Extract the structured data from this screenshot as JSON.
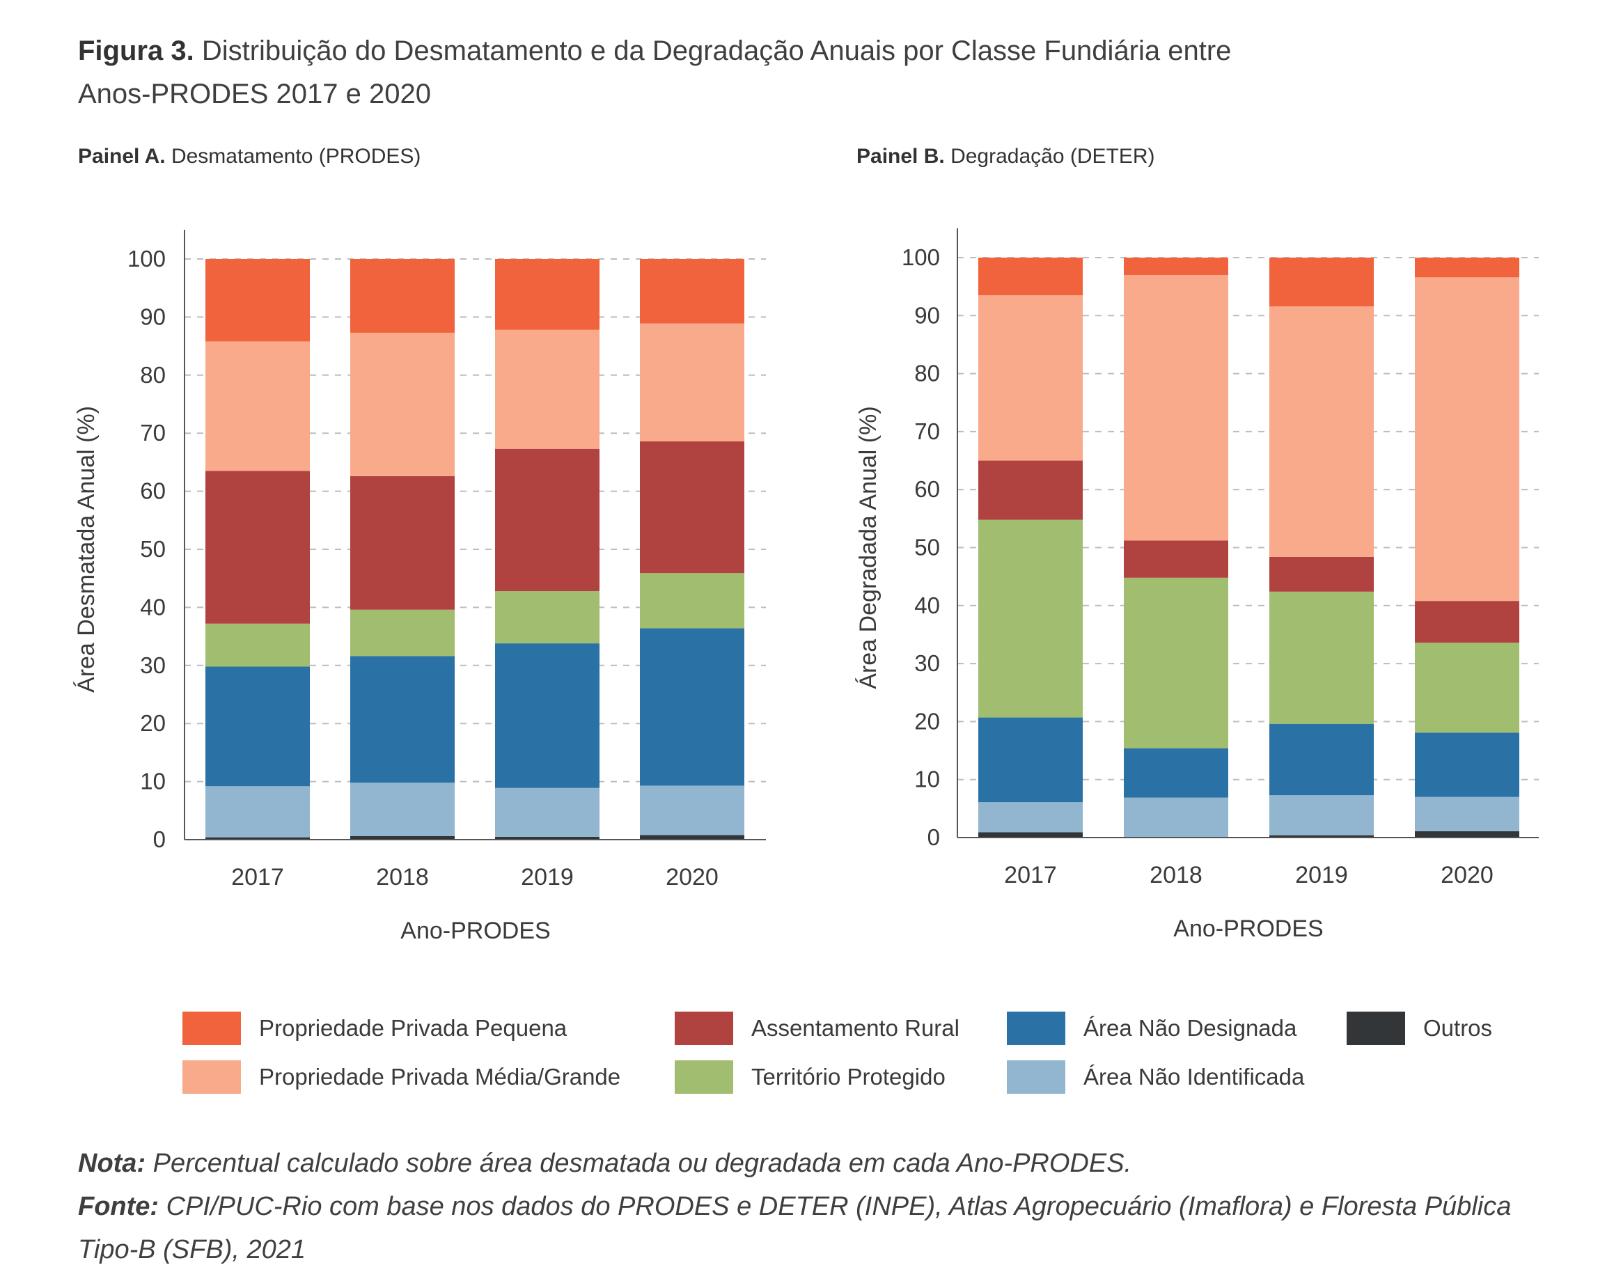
{
  "figure": {
    "title_bold": "Figura 3.",
    "title_line1": "Distribuição do Desmatamento e da Degradação Anuais por Classe Fundiária entre",
    "title_line2": "Anos-PRODES 2017 e 2020"
  },
  "legend": [
    {
      "key": "outros",
      "label": "Outros",
      "color": "#333638"
    },
    {
      "key": "nao_identificada",
      "label": "Área Não Identificada",
      "color": "#92b6d0"
    },
    {
      "key": "nao_designada",
      "label": "Área Não Designada",
      "color": "#2a71a5"
    },
    {
      "key": "territorio",
      "label": "Território Protegido",
      "color": "#a1bd6f"
    },
    {
      "key": "assentamento",
      "label": "Assentamento Rural",
      "color": "#b04240"
    },
    {
      "key": "media_grande",
      "label": "Propriedade Privada Média/Grande",
      "color": "#f8aa8a"
    },
    {
      "key": "pequena",
      "label": "Propriedade Privada Pequena",
      "color": "#f0633c"
    }
  ],
  "chart_data": [
    {
      "type": "bar",
      "stacked": true,
      "panel_bold": "Painel A.",
      "panel_title": "Desmatamento (PRODES)",
      "xlabel": "Ano-PRODES",
      "ylabel": "Área Desmatada Anual (%)",
      "ylim": [
        0,
        100
      ],
      "yticks": [
        0,
        10,
        20,
        30,
        40,
        50,
        60,
        70,
        80,
        90,
        100
      ],
      "grid": "horizontal dashed",
      "categories": [
        "2017",
        "2018",
        "2019",
        "2020"
      ],
      "series": [
        {
          "name": "Outros",
          "values": [
            0.4,
            0.6,
            0.5,
            0.8
          ]
        },
        {
          "name": "Área Não Identificada",
          "values": [
            8.8,
            9.2,
            8.4,
            8.5
          ]
        },
        {
          "name": "Área Não Designada",
          "values": [
            20.6,
            21.8,
            24.9,
            27.1
          ]
        },
        {
          "name": "Território Protegido",
          "values": [
            7.4,
            8.0,
            9.0,
            9.5
          ]
        },
        {
          "name": "Assentamento Rural",
          "values": [
            26.3,
            23.0,
            24.5,
            22.7
          ]
        },
        {
          "name": "Propriedade Privada Média/Grande",
          "values": [
            22.3,
            24.7,
            20.5,
            20.3
          ]
        },
        {
          "name": "Propriedade Privada Pequena",
          "values": [
            14.2,
            12.7,
            12.2,
            11.1
          ]
        }
      ]
    },
    {
      "type": "bar",
      "stacked": true,
      "panel_bold": "Painel B.",
      "panel_title": "Degradação (DETER)",
      "xlabel": "Ano-PRODES",
      "ylabel": "Área Degradada Anual (%)",
      "ylim": [
        0,
        100
      ],
      "yticks": [
        0,
        10,
        20,
        30,
        40,
        50,
        60,
        70,
        80,
        90,
        100
      ],
      "grid": "horizontal dashed",
      "categories": [
        "2017",
        "2018",
        "2019",
        "2020"
      ],
      "series": [
        {
          "name": "Outros",
          "values": [
            0.9,
            0.1,
            0.4,
            1.1
          ]
        },
        {
          "name": "Área Não Identificada",
          "values": [
            5.2,
            6.8,
            6.9,
            5.9
          ]
        },
        {
          "name": "Área Não Designada",
          "values": [
            14.6,
            8.5,
            12.3,
            11.1
          ]
        },
        {
          "name": "Território Protegido",
          "values": [
            34.1,
            29.4,
            22.8,
            15.5
          ]
        },
        {
          "name": "Assentamento Rural",
          "values": [
            10.2,
            6.4,
            6.0,
            7.2
          ]
        },
        {
          "name": "Propriedade Privada Média/Grande",
          "values": [
            28.5,
            45.8,
            43.2,
            55.8
          ]
        },
        {
          "name": "Propriedade Privada Pequena",
          "values": [
            6.5,
            3.0,
            8.4,
            3.4
          ]
        }
      ]
    }
  ],
  "notes": {
    "nota_label": "Nota:",
    "nota_text": "Percentual calculado sobre área desmatada ou degradada em cada Ano-PRODES.",
    "fonte_label": "Fonte:",
    "fonte_text": "CPI/PUC-Rio com base nos dados do PRODES e DETER (INPE), Atlas Agropecuário (Imaflora) e Floresta Pública Tipo-B (SFB), 2021"
  }
}
